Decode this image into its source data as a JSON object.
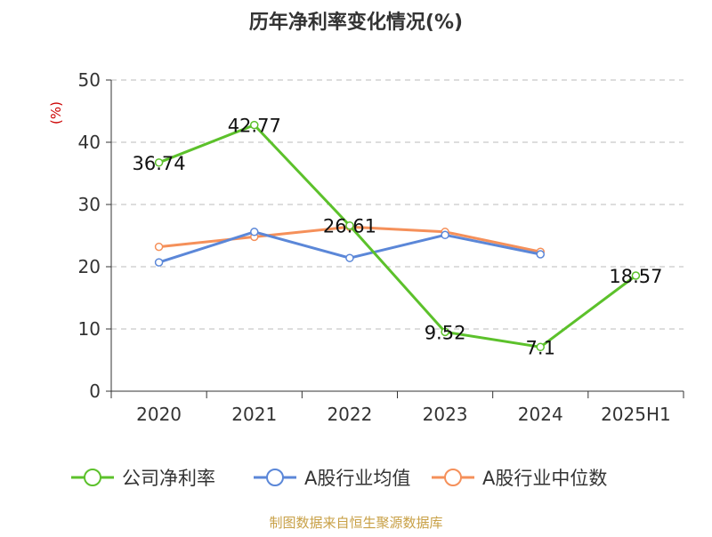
{
  "chart_data": {
    "type": "line",
    "title": "历年净利率变化情况(%)",
    "ylabel": "(%)",
    "xlabel": "",
    "categories": [
      "2020",
      "2021",
      "2022",
      "2023",
      "2024",
      "2025H1"
    ],
    "ylim": [
      0,
      50
    ],
    "yticks": [
      0,
      10,
      20,
      30,
      40,
      50
    ],
    "grid": true,
    "legend_position": "bottom",
    "series": [
      {
        "name": "公司净利率",
        "color": "#5cc12b",
        "values": [
          36.74,
          42.77,
          26.61,
          9.52,
          7.1,
          18.57
        ],
        "labels": [
          "36.74",
          "42.77",
          "26.61",
          "9.52",
          "7.1",
          "18.57"
        ]
      },
      {
        "name": "A股行业均值",
        "color": "#5b87d8",
        "values": [
          20.7,
          25.6,
          21.4,
          25.1,
          22.0,
          null
        ]
      },
      {
        "name": "A股行业中位数",
        "color": "#f5905a",
        "values": [
          23.2,
          24.8,
          26.4,
          25.6,
          22.4,
          null
        ]
      }
    ],
    "source": "制图数据来自恒生聚源数据库"
  }
}
